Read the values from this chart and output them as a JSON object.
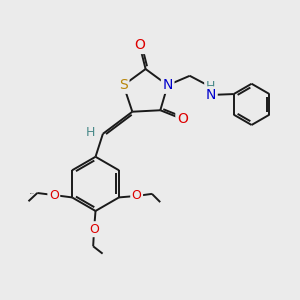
{
  "bg_color": "#ebebeb",
  "bond_color": "#1a1a1a",
  "atom_colors": {
    "S": "#b8860b",
    "N": "#0000cc",
    "O": "#dd0000",
    "H": "#4a8a8a",
    "C": "#1a1a1a"
  },
  "figsize": [
    3.0,
    3.0
  ],
  "dpi": 100,
  "lw": 1.4,
  "dbl_off": 0.07
}
